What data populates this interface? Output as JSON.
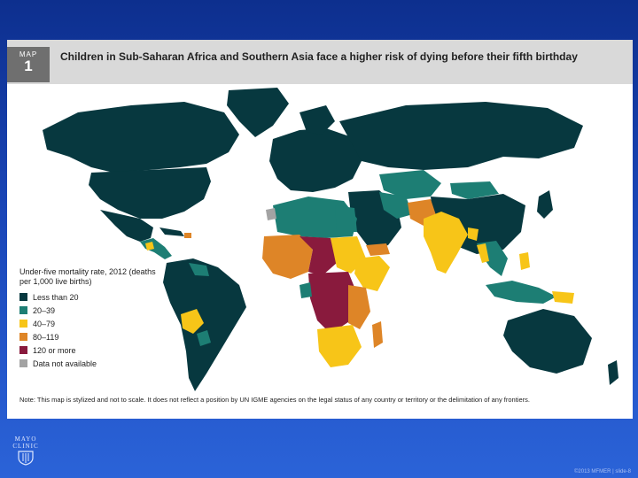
{
  "header": {
    "map_label": "MAP",
    "map_number": "1",
    "title": "Children in Sub-Saharan Africa and Southern Asia face a higher risk of dying before their fifth birthday"
  },
  "legend": {
    "title": "Under-five mortality rate, 2012 (deaths per 1,000 live births)",
    "items": [
      {
        "label": "Less than 20",
        "color": "#07383f"
      },
      {
        "label": "20–39",
        "color": "#1d7e74"
      },
      {
        "label": "40–79",
        "color": "#f7c518"
      },
      {
        "label": "80–119",
        "color": "#de8527"
      },
      {
        "label": "120 or more",
        "color": "#891a3d"
      },
      {
        "label": "Data not available",
        "color": "#a3a3a3"
      }
    ]
  },
  "note": "Note: This map is stylized and not to scale. It does not reflect a position by UN IGME agencies on the legal status of any country or territory or the delimitation of any frontiers.",
  "logo": {
    "line1": "MAYO",
    "line2": "CLINIC"
  },
  "footer": "©2013 MFMER | slide-8"
}
